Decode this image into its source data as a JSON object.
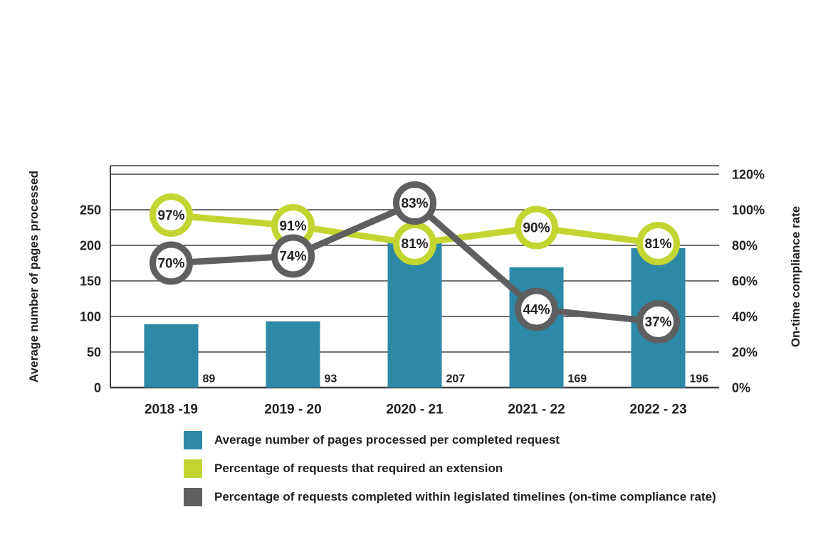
{
  "chart_data": {
    "type": "combo-bar-line",
    "categories": [
      "2018 -19",
      "2019 - 20",
      "2020 - 21",
      "2021 - 22",
      "2022 - 23"
    ],
    "bar_series": {
      "name": "Average number of pages processed per completed request",
      "values": [
        89,
        93,
        207,
        169,
        196
      ],
      "color": "#2d89a6"
    },
    "line_series": [
      {
        "name": "Percentage of requests that required an extension",
        "values": [
          97,
          91,
          81,
          90,
          81
        ],
        "labels": [
          "97%",
          "91%",
          "81%",
          "90%",
          "81%"
        ],
        "color": "#c3d530"
      },
      {
        "name": "Percentage of requests completed within legislated timelines (on-time compliance rate)",
        "values": [
          70,
          74,
          83,
          44,
          37
        ],
        "labels": [
          "70%",
          "74%",
          "83%",
          "44%",
          "37%"
        ],
        "color": "#5e5f61"
      }
    ],
    "left_axis": {
      "title": "Average number of pages processed",
      "ticks": [
        0,
        50,
        100,
        150,
        200,
        250
      ],
      "max": 300
    },
    "right_axis": {
      "title": "On-time compliance rate",
      "ticks": [
        "0%",
        "20%",
        "40%",
        "60%",
        "80%",
        "100%",
        "120%"
      ],
      "tick_values": [
        0,
        20,
        40,
        60,
        80,
        100,
        120
      ],
      "max": 120
    },
    "legend_position": "bottom-left",
    "grid": "horizontal",
    "text_color": "#231f20",
    "grid_color": "#414042"
  }
}
